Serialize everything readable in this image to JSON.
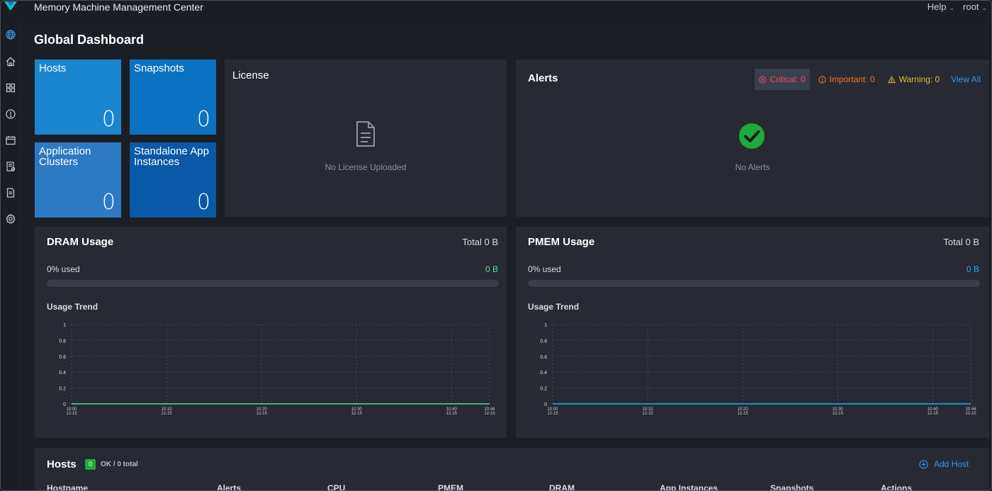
{
  "app": {
    "title": "Memory Machine Management Center",
    "help_label": "Help",
    "user_label": "root"
  },
  "page": {
    "title": "Global Dashboard"
  },
  "tiles": [
    {
      "label": "Hosts",
      "count": "0",
      "color": "#1a86d0"
    },
    {
      "label": "Snapshots",
      "count": "0",
      "color": "#0b72c1"
    },
    {
      "label": "Application Clusters",
      "count": "0",
      "color": "#2d79c4"
    },
    {
      "label": "Standalone App Instances",
      "count": "0",
      "color": "#0a58a8"
    }
  ],
  "license": {
    "title": "License",
    "empty_text": "No License Uploaded"
  },
  "alerts": {
    "title": "Alerts",
    "critical": "Critical: 0",
    "important": "Important: 0",
    "warning": "Warning: 0",
    "view_all": "View All",
    "empty_text": "No Alerts"
  },
  "dram": {
    "title": "DRAM Usage",
    "total": "Total 0 B",
    "used_pct": "0% used",
    "used_value": "0 B",
    "used_fraction": 0,
    "trend_label": "Usage Trend",
    "line_color": "#4fe08a"
  },
  "pmem": {
    "title": "PMEM Usage",
    "total": "Total 0 B",
    "used_pct": "0% used",
    "used_value": "0 B",
    "used_fraction": 0,
    "trend_label": "Usage Trend",
    "line_color": "#1fb1e8"
  },
  "chart_data": [
    {
      "type": "line",
      "ylim": [
        0,
        1
      ],
      "y_ticks": [
        "0",
        "0.2",
        "0.4",
        "0.6",
        "0.8",
        "1"
      ],
      "x_ticks": [
        {
          "time": "10:00",
          "date": "12-15"
        },
        {
          "time": "10:10",
          "date": "12-15"
        },
        {
          "time": "10:20",
          "date": "12-15"
        },
        {
          "time": "10:30",
          "date": "12-15"
        },
        {
          "time": "10:40",
          "date": "12-15"
        },
        {
          "time": "10:44",
          "date": "12-15"
        }
      ],
      "series": [
        {
          "values": [
            0,
            0,
            0,
            0,
            0,
            0
          ]
        }
      ]
    },
    {
      "type": "line",
      "ylim": [
        0,
        1
      ],
      "y_ticks": [
        "0",
        "0.2",
        "0.4",
        "0.6",
        "0.8",
        "1"
      ],
      "x_ticks": [
        {
          "time": "10:00",
          "date": "12-15"
        },
        {
          "time": "10:10",
          "date": "12-15"
        },
        {
          "time": "10:20",
          "date": "12-15"
        },
        {
          "time": "10:30",
          "date": "12-15"
        },
        {
          "time": "10:40",
          "date": "12-15"
        },
        {
          "time": "10:44",
          "date": "12-15"
        }
      ],
      "series": [
        {
          "values": [
            0,
            0,
            0,
            0,
            0,
            0
          ]
        }
      ]
    }
  ],
  "hosts": {
    "title": "Hosts",
    "ok_count": "0",
    "status_text": "OK / 0 total",
    "add_label": "Add Host",
    "columns": [
      "Hostname",
      "Alerts",
      "CPU",
      "PMEM",
      "DRAM",
      "App Instances",
      "Snapshots",
      "Actions"
    ]
  }
}
